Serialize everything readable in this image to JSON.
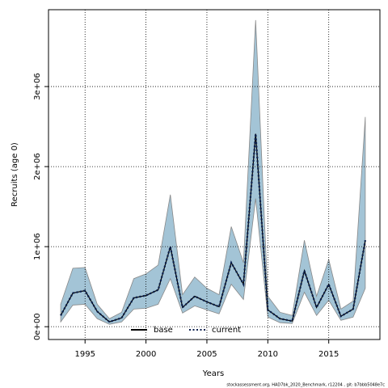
{
  "chart_data": {
    "type": "line",
    "x_label": "Years",
    "y_label": "Recruits (age 0)",
    "footer": "stockassessment.org, HAD7bk_2020_Benchmark, r12204 , git: b7bbb5048e7c",
    "x": [
      1993,
      1994,
      1995,
      1996,
      1997,
      1998,
      1999,
      2000,
      2001,
      2002,
      2003,
      2004,
      2005,
      2006,
      2007,
      2008,
      2009,
      2010,
      2011,
      2012,
      2013,
      2014,
      2015,
      2016,
      2017,
      2018
    ],
    "series": [
      {
        "name": "base",
        "color": "#000000",
        "dash": "solid",
        "values": [
          140000,
          420000,
          450000,
          190000,
          60000,
          110000,
          360000,
          390000,
          460000,
          1000000,
          240000,
          380000,
          310000,
          250000,
          800000,
          530000,
          2410000,
          210000,
          100000,
          70000,
          700000,
          240000,
          530000,
          130000,
          220000,
          1080000
        ]
      },
      {
        "name": "current",
        "color": "#0b1f4d",
        "dash": "dotted",
        "values": [
          140000,
          420000,
          450000,
          190000,
          60000,
          110000,
          360000,
          390000,
          460000,
          1000000,
          240000,
          380000,
          310000,
          250000,
          800000,
          530000,
          2410000,
          210000,
          100000,
          70000,
          700000,
          240000,
          530000,
          130000,
          220000,
          1080000
        ]
      }
    ],
    "band_upper": [
      280000,
      730000,
      740000,
      280000,
      100000,
      180000,
      600000,
      660000,
      770000,
      1650000,
      400000,
      620000,
      480000,
      400000,
      1250000,
      800000,
      3830000,
      380000,
      180000,
      140000,
      1080000,
      380000,
      840000,
      220000,
      320000,
      2620000
    ],
    "band_lower": [
      60000,
      270000,
      280000,
      100000,
      30000,
      60000,
      220000,
      230000,
      280000,
      600000,
      170000,
      260000,
      210000,
      160000,
      530000,
      340000,
      1600000,
      120000,
      50000,
      40000,
      430000,
      140000,
      330000,
      80000,
      120000,
      480000
    ],
    "band_color": "#a3c4d6",
    "xlim": [
      1992.0,
      2019.2
    ],
    "xticks": [
      1995,
      2000,
      2005,
      2010,
      2015
    ],
    "ylim": [
      -160000,
      3960000
    ],
    "yticks": [
      {
        "value": 0,
        "label": "0e+00"
      },
      {
        "value": 1000000,
        "label": "1e+06"
      },
      {
        "value": 2000000,
        "label": "2e+06"
      },
      {
        "value": 3000000,
        "label": "3e+06"
      }
    ],
    "grid": true,
    "legend": "bottom"
  }
}
